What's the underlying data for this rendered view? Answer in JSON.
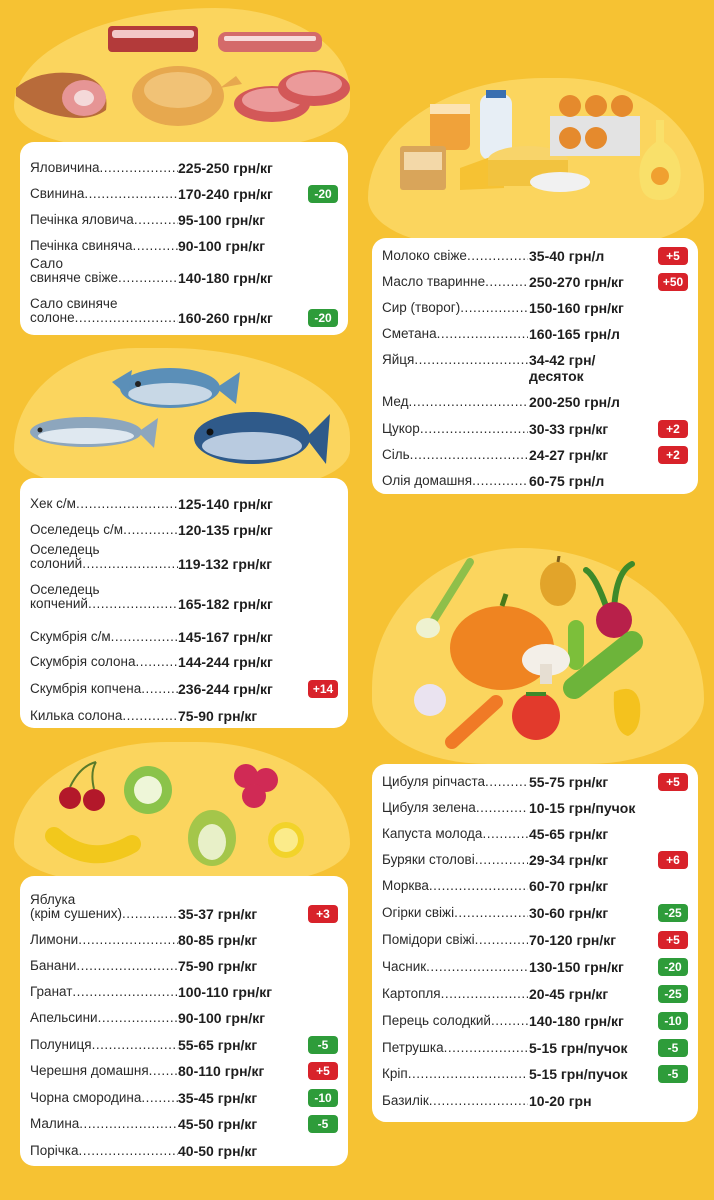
{
  "colors": {
    "background": "#f6c233",
    "blob": "#fbd55e",
    "panel": "#ffffff",
    "increase": "#d8222a",
    "decrease": "#2e9c3a"
  },
  "meat": {
    "illustration": "meat-illustration",
    "items": [
      {
        "name": "Яловичина",
        "price": "225-250 грн/кг",
        "change": ""
      },
      {
        "name": "Свинина",
        "price": "170-240 грн/кг",
        "change": "-20"
      },
      {
        "name": "Печінка яловича",
        "price": "95-100 грн/кг",
        "change": ""
      },
      {
        "name": "Печінка свиняча",
        "price": "90-100 грн/кг",
        "change": ""
      },
      {
        "name_line1": "Сало",
        "name": "свиняче свіже",
        "price": "140-180 грн/кг",
        "change": ""
      },
      {
        "name_line1": "Сало свиняче",
        "name": "солоне",
        "price": "160-260 грн/кг",
        "change": "-20"
      }
    ]
  },
  "fish": {
    "illustration": "fish-illustration",
    "items": [
      {
        "name": "Хек с/м",
        "price": "125-140 грн/кг",
        "change": ""
      },
      {
        "name": "Оселедець с/м",
        "price": "120-135 грн/кг",
        "change": ""
      },
      {
        "name_line1": "Оселедець",
        "name": "солоний",
        "price": "119-132 грн/кг",
        "change": ""
      },
      {
        "name_line1": "Оселедець",
        "name": "копчений",
        "price": "165-182 грн/кг",
        "change": ""
      },
      {
        "name": "Скумбрія с/м",
        "price": "145-167 грн/кг",
        "change": ""
      },
      {
        "name": "Скумбрія солона",
        "price": "144-244 грн/кг",
        "change": ""
      },
      {
        "name": "Скумбрія копчена",
        "price": "236-244 грн/кг",
        "change": "+14"
      },
      {
        "name": "Килька солона",
        "price": "75-90 грн/кг",
        "change": ""
      }
    ]
  },
  "fruits": {
    "illustration": "fruit-illustration",
    "items": [
      {
        "name_line1": "Яблука",
        "name": "(крім сушених)",
        "price": "35-37 грн/кг",
        "change": "+3"
      },
      {
        "name": "Лимони",
        "price": "80-85 грн/кг",
        "change": ""
      },
      {
        "name": "Банани",
        "price": "75-90 грн/кг",
        "change": ""
      },
      {
        "name": "Гранат",
        "price": "100-110 грн/кг",
        "change": ""
      },
      {
        "name": "Апельсини",
        "price": "90-100 грн/кг",
        "change": ""
      },
      {
        "name": "Полуниця",
        "price": "55-65 грн/кг",
        "change": "-5"
      },
      {
        "name": "Черешня домашня",
        "price": "80-110 грн/кг",
        "change": "+5"
      },
      {
        "name": "Чорна смородина",
        "price": "35-45 грн/кг",
        "change": "-10"
      },
      {
        "name": "Малина",
        "price": "45-50 грн/кг",
        "change": "-5"
      },
      {
        "name": "Порічка",
        "price": "40-50 грн/кг",
        "change": ""
      }
    ]
  },
  "dairy": {
    "illustration": "dairy-illustration",
    "items": [
      {
        "name": "Молоко свіже",
        "price": "35-40 грн/л",
        "change": "+5"
      },
      {
        "name": "Масло тваринне",
        "price": "250-270 грн/кг",
        "change": "+50"
      },
      {
        "name": "Сир (творог)",
        "price": "150-160 грн/кг",
        "change": ""
      },
      {
        "name": "Сметана",
        "price": "160-165 грн/л",
        "change": ""
      },
      {
        "name": "Яйця",
        "price": "34-42 грн/",
        "price_line2": "десяток",
        "change": ""
      },
      {
        "name": "Мед",
        "price": "200-250 грн/л",
        "change": ""
      },
      {
        "name": "Цукор",
        "price": "30-33 грн/кг",
        "change": "+2"
      },
      {
        "name": "Сіль",
        "price": "24-27 грн/кг",
        "change": "+2"
      },
      {
        "name": "Олія домашня",
        "price": "60-75 грн/л",
        "change": ""
      }
    ]
  },
  "vegetables": {
    "illustration": "vegetable-illustration",
    "items": [
      {
        "name": "Цибуля ріпчаста",
        "price": "55-75 грн/кг",
        "change": "+5"
      },
      {
        "name": "Цибуля зелена",
        "price": "10-15 грн/пучок",
        "change": ""
      },
      {
        "name": "Капуста молода",
        "price": "45-65 грн/кг",
        "change": ""
      },
      {
        "name": "Буряки столові",
        "price": "29-34 грн/кг",
        "change": "+6"
      },
      {
        "name": "Морква",
        "price": "60-70 грн/кг",
        "change": ""
      },
      {
        "name": "Огірки свіжі",
        "price": "30-60 грн/кг",
        "change": "-25"
      },
      {
        "name": "Помідори свіжі",
        "price": "70-120 грн/кг",
        "change": "+5"
      },
      {
        "name": "Часник",
        "price": "130-150 грн/кг",
        "change": "-20"
      },
      {
        "name": "Картопля",
        "price": "20-45 грн/кг",
        "change": "-25"
      },
      {
        "name": "Перець солодкий",
        "price": "140-180 грн/кг",
        "change": "-10"
      },
      {
        "name": "Петрушка",
        "price": "5-15 грн/пучок",
        "change": "-5"
      },
      {
        "name": "Кріп",
        "price": "5-15 грн/пучок",
        "change": "-5"
      },
      {
        "name": "Базилік",
        "price": "10-20 грн",
        "change": ""
      }
    ]
  }
}
